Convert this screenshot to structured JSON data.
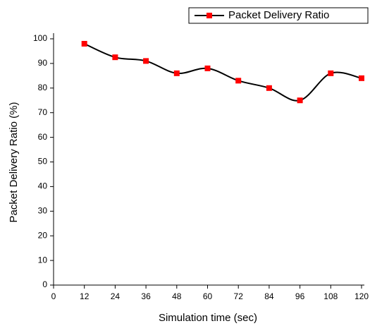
{
  "chart_data": {
    "type": "line",
    "xlabel": "Simulation time (sec)",
    "ylabel": "Packet Delivery Ratio (%)",
    "x": [
      12,
      24,
      36,
      48,
      60,
      72,
      84,
      96,
      108,
      120
    ],
    "series": [
      {
        "name": "Packet Delivery Ratio",
        "color": "#000000",
        "marker_color": "#ff0000",
        "values": [
          98,
          92.5,
          91,
          86,
          88,
          83,
          80,
          75,
          86,
          84
        ]
      }
    ],
    "xlim": [
      0,
      120
    ],
    "xticks": [
      0,
      12,
      24,
      36,
      48,
      60,
      72,
      84,
      96,
      108,
      120
    ],
    "ylim": [
      0,
      100
    ],
    "yticks": [
      0,
      10,
      20,
      30,
      40,
      50,
      60,
      70,
      80,
      90,
      100
    ],
    "smooth": true,
    "legend": "top-right"
  }
}
